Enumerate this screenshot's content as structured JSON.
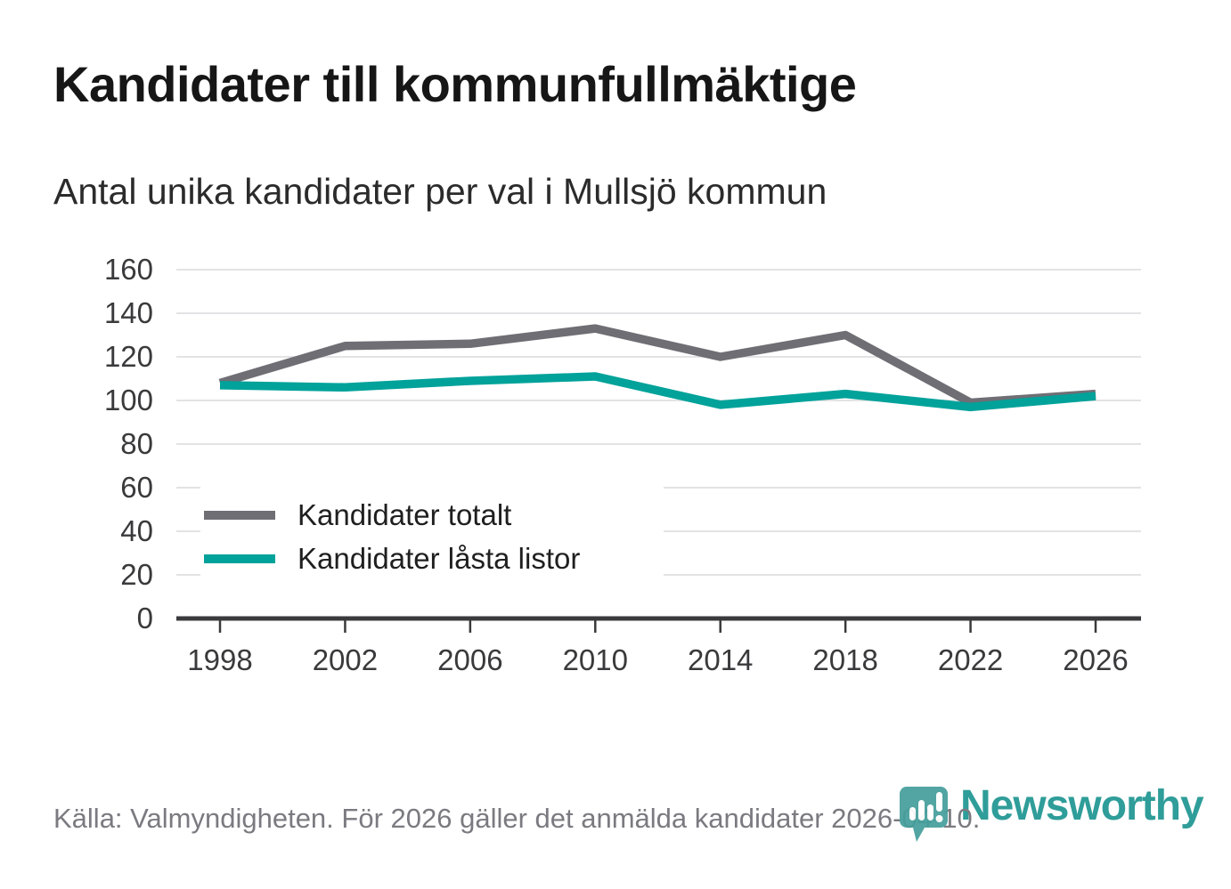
{
  "header": {
    "title": "Kandidater till kommunfullmäktige",
    "subtitle": "Antal unika kandidater per val i Mullsjö kommun"
  },
  "legend": {
    "items": [
      {
        "label": "Kandidater totalt",
        "color": "#6f6e74"
      },
      {
        "label": "Kandidater låsta listor",
        "color": "#00a29a"
      }
    ]
  },
  "footer": {
    "source": "Källa: Valmyndigheten. För 2026 gäller det anmälda kandidater 2026-04-10."
  },
  "branding": {
    "name": "Newsworthy",
    "icon": "newsworthy-bubble-bars-icon",
    "text_color": "#2f9d99",
    "bubble_color": "#459f9c"
  },
  "chart_data": {
    "type": "line",
    "title": "Kandidater till kommunfullmäktige",
    "subtitle": "Antal unika kandidater per val i Mullsjö kommun",
    "x": [
      1998,
      2002,
      2006,
      2010,
      2014,
      2018,
      2022,
      2026
    ],
    "xticks": [
      "1998",
      "2002",
      "2006",
      "2010",
      "2014",
      "2018",
      "2022",
      "2026"
    ],
    "series": [
      {
        "name": "Kandidater totalt",
        "color": "#6f6e74",
        "values": [
          108,
          125,
          126,
          133,
          120,
          130,
          99,
          103
        ]
      },
      {
        "name": "Kandidater låsta listor",
        "color": "#00a29a",
        "values": [
          107,
          106,
          109,
          111,
          98,
          103,
          97,
          102
        ]
      }
    ],
    "ylim": [
      0,
      160
    ],
    "yticks": [
      0,
      20,
      40,
      60,
      80,
      100,
      120,
      140,
      160
    ],
    "grid": true,
    "gridline_color": "#e3e3e5",
    "axis_color": "#3a3a3c",
    "legend_position": "inside-bottom-left"
  }
}
